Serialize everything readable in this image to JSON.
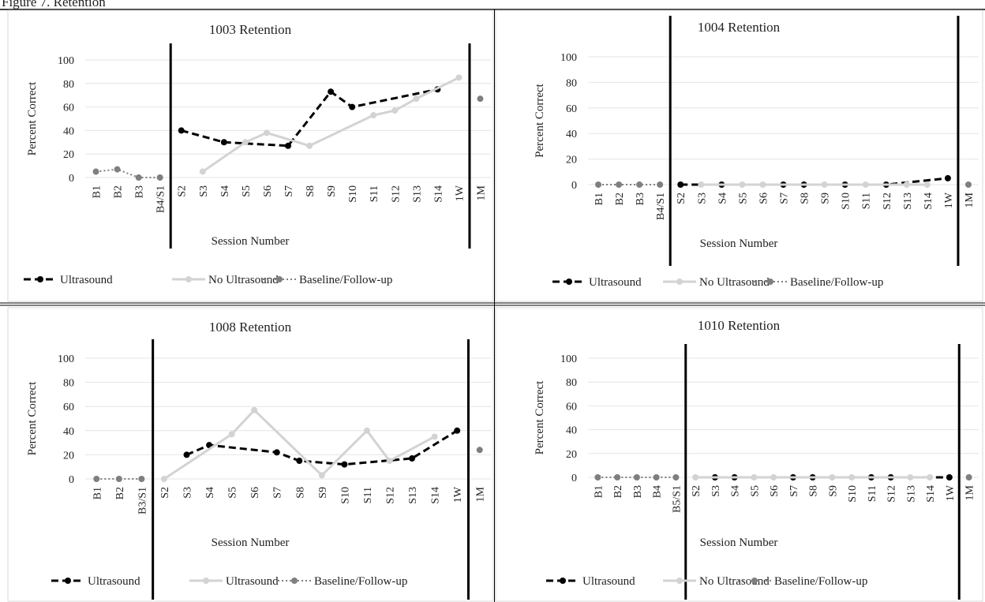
{
  "figure_title": "Figure 7. Retention",
  "chart_data": [
    {
      "type": "line",
      "title": "1003 Retention",
      "y_label": "Percent Correct",
      "x_label": "Session Number",
      "categories": [
        "B1",
        "B2",
        "B3",
        "B4/S1",
        "S2",
        "S3",
        "S4",
        "S5",
        "S6",
        "S7",
        "S8",
        "S9",
        "S10",
        "S11",
        "S12",
        "S13",
        "S14",
        "1W",
        "1M"
      ],
      "ylim": [
        0,
        100
      ],
      "yticks": [
        0,
        20,
        40,
        60,
        80,
        100
      ],
      "grid": true,
      "series": [
        {
          "name": "Ultrasound",
          "color": "#000000",
          "line_style": "dashed",
          "connect_gaps": true,
          "values": [
            null,
            null,
            null,
            null,
            40,
            null,
            30,
            null,
            null,
            27,
            null,
            73,
            60,
            null,
            null,
            null,
            75,
            null,
            null
          ]
        },
        {
          "name": "No Ultrasound",
          "color": "#d3d3d3",
          "line_style": "solid",
          "connect_gaps": true,
          "values": [
            null,
            null,
            null,
            null,
            null,
            5,
            null,
            30,
            38,
            null,
            27,
            null,
            null,
            53,
            57,
            67,
            null,
            85,
            null
          ]
        },
        {
          "name": "Baseline/Follow-up",
          "color": "#7f7f7f",
          "line_style": "dotted",
          "connect_gaps": false,
          "values": [
            5,
            7,
            0,
            0,
            null,
            null,
            null,
            null,
            null,
            null,
            null,
            null,
            null,
            null,
            null,
            null,
            null,
            null,
            67
          ]
        }
      ]
    },
    {
      "type": "line",
      "title": "1004 Retention",
      "y_label": "Percent Correct",
      "x_label": "Session Number",
      "categories": [
        "B1",
        "B2",
        "B3",
        "B4/S1",
        "S2",
        "S3",
        "S4",
        "S5",
        "S6",
        "S7",
        "S8",
        "S9",
        "S10",
        "S11",
        "S12",
        "S13",
        "S14",
        "1W",
        "1M"
      ],
      "ylim": [
        0,
        100
      ],
      "yticks": [
        0,
        20,
        40,
        60,
        80,
        100
      ],
      "grid": true,
      "series": [
        {
          "name": "Ultrasound",
          "color": "#000000",
          "line_style": "dashed",
          "connect_gaps": true,
          "values": [
            null,
            null,
            null,
            null,
            0,
            null,
            0,
            null,
            null,
            0,
            0,
            null,
            0,
            null,
            0,
            null,
            null,
            5,
            null
          ]
        },
        {
          "name": "No Ultrasound",
          "color": "#d3d3d3",
          "line_style": "solid",
          "connect_gaps": true,
          "values": [
            null,
            null,
            null,
            null,
            null,
            0,
            null,
            0,
            0,
            null,
            null,
            0,
            null,
            0,
            null,
            0,
            0,
            null,
            null
          ]
        },
        {
          "name": "Baseline/Follow-up",
          "color": "#7f7f7f",
          "line_style": "dotted",
          "connect_gaps": false,
          "values": [
            0,
            0,
            0,
            0,
            null,
            null,
            null,
            null,
            null,
            null,
            null,
            null,
            null,
            null,
            null,
            null,
            null,
            null,
            0
          ]
        }
      ]
    },
    {
      "type": "line",
      "title": "1008 Retention",
      "y_label": "Percent Correct",
      "x_label": "Session Number",
      "categories": [
        "B1",
        "B2",
        "B3/S1",
        "S2",
        "S3",
        "S4",
        "S5",
        "S6",
        "S7",
        "S8",
        "S9",
        "S10",
        "S11",
        "S12",
        "S13",
        "S14",
        "1W",
        "1M"
      ],
      "ylim": [
        0,
        100
      ],
      "yticks": [
        0,
        20,
        40,
        60,
        80,
        100
      ],
      "grid": true,
      "series": [
        {
          "name": "Ultrasound",
          "color": "#000000",
          "line_style": "dashed",
          "connect_gaps": true,
          "values": [
            null,
            null,
            null,
            null,
            20,
            28,
            null,
            null,
            22,
            15,
            null,
            12,
            null,
            null,
            17,
            null,
            40,
            null
          ]
        },
        {
          "name": "Ultrasound",
          "color": "#d3d3d3",
          "line_style": "solid",
          "connect_gaps": true,
          "values": [
            null,
            null,
            null,
            0,
            null,
            null,
            37,
            57,
            null,
            null,
            3,
            null,
            40,
            15,
            null,
            35,
            null,
            null
          ]
        },
        {
          "name": "Baseline/Follow-up",
          "color": "#7f7f7f",
          "line_style": "dotted",
          "connect_gaps": false,
          "values": [
            0,
            0,
            0,
            null,
            null,
            null,
            null,
            null,
            null,
            null,
            null,
            null,
            null,
            null,
            null,
            null,
            null,
            24
          ]
        }
      ]
    },
    {
      "type": "line",
      "title": "1010 Retention",
      "y_label": "Percent Correct",
      "x_label": "Session Number",
      "categories": [
        "B1",
        "B2",
        "B3",
        "B4",
        "B5/S1",
        "S2",
        "S3",
        "S4",
        "S5",
        "S6",
        "S7",
        "S8",
        "S9",
        "S10",
        "S11",
        "S12",
        "S13",
        "S14",
        "1W",
        "1M"
      ],
      "ylim": [
        0,
        100
      ],
      "yticks": [
        0,
        20,
        40,
        60,
        80,
        100
      ],
      "grid": true,
      "series": [
        {
          "name": "Ultrasound",
          "color": "#000000",
          "line_style": "dashed",
          "connect_gaps": true,
          "values": [
            null,
            null,
            null,
            null,
            null,
            null,
            0,
            0,
            null,
            null,
            0,
            0,
            null,
            null,
            0,
            0,
            null,
            null,
            0,
            null
          ]
        },
        {
          "name": "No Ultrasound",
          "color": "#d3d3d3",
          "line_style": "solid",
          "connect_gaps": true,
          "values": [
            null,
            null,
            null,
            null,
            null,
            0,
            null,
            null,
            0,
            0,
            null,
            null,
            0,
            0,
            null,
            null,
            0,
            0,
            null,
            null
          ]
        },
        {
          "name": "Baseline/Follow-up",
          "color": "#7f7f7f",
          "line_style": "dotted",
          "connect_gaps": false,
          "values": [
            0,
            0,
            0,
            0,
            0,
            null,
            null,
            null,
            null,
            null,
            null,
            null,
            null,
            null,
            null,
            null,
            null,
            null,
            null,
            0
          ]
        }
      ]
    }
  ]
}
